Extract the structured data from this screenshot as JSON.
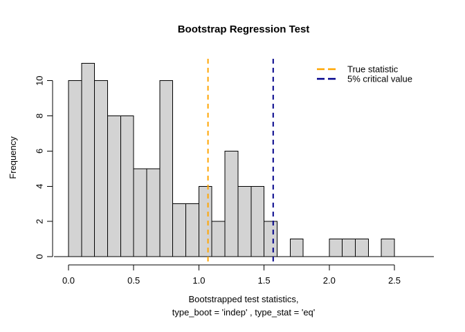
{
  "title": "Bootstrap Regression Test",
  "x_axis": {
    "tick_labels": [
      "0.0",
      "0.5",
      "1.0",
      "1.5",
      "2.0",
      "2.5"
    ],
    "label_line1": "Bootstrapped test statistics,",
    "label_line2": "type_boot = 'indep' , type_stat = 'eq'"
  },
  "y_axis": {
    "tick_labels": [
      "0",
      "2",
      "4",
      "6",
      "8",
      "10"
    ],
    "label": "Frequency"
  },
  "legend": {
    "position": "top-right",
    "items": [
      {
        "label": "True statistic",
        "color": "#FFA500",
        "line_style": "dashed"
      },
      {
        "label": "5% critical value",
        "color": "#00008B",
        "line_style": "dashed"
      }
    ]
  },
  "colors": {
    "bar_fill": "#D3D3D3",
    "bar_stroke": "#000000",
    "axis": "#000000",
    "background": "#FFFFFF"
  },
  "chart_data": {
    "type": "bar",
    "subtype": "histogram",
    "title": "Bootstrap Regression Test",
    "xlabel": "Bootstrapped test statistics, type_boot = 'indep' , type_stat = 'eq'",
    "ylabel": "Frequency",
    "grid": false,
    "legend_position": "top-right",
    "bin_start": 0.0,
    "bin_width": 0.1,
    "counts": [
      10,
      11,
      10,
      8,
      8,
      5,
      5,
      10,
      3,
      3,
      4,
      2,
      6,
      4,
      4,
      2,
      0,
      1,
      0,
      0,
      1,
      1,
      1,
      0,
      1
    ],
    "total_count": 100,
    "x_ticks": [
      0.0,
      0.5,
      1.0,
      1.5,
      2.0,
      2.5
    ],
    "y_ticks": [
      0,
      2,
      4,
      6,
      8,
      10
    ],
    "xlim": [
      0.0,
      2.5
    ],
    "ylim": [
      0,
      11
    ],
    "vlines": [
      {
        "x": 1.07,
        "label": "True statistic",
        "color": "#FFA500",
        "style": "dashed"
      },
      {
        "x": 1.57,
        "label": "5% critical value",
        "color": "#00008B",
        "style": "dashed"
      }
    ]
  }
}
